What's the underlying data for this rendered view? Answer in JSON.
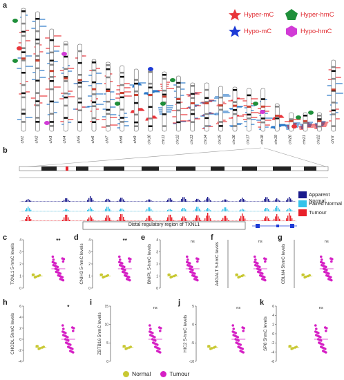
{
  "panels": {
    "a": "a",
    "b": "b",
    "c": "c",
    "d": "d",
    "e": "e",
    "f": "f",
    "g": "g",
    "h": "h",
    "i": "i",
    "j": "j",
    "k": "k"
  },
  "legend_a": {
    "hyper_mc": "Hyper-mC",
    "hyper_hmc": "Hyper-hmC",
    "hypo_mc": "Hypo-mC",
    "hypo_hmc": "Hypo-hmC",
    "colors": {
      "hyper_mc": "#e8353a",
      "hyper_hmc": "#1f8f3a",
      "hypo_mc": "#1e3bd6",
      "hypo_hmc": "#d13bd6"
    }
  },
  "chromosomes": [
    "chr1",
    "chr2",
    "chr3",
    "chr4",
    "chr5",
    "chr6",
    "chr7",
    "chr8",
    "chr9",
    "chr10",
    "chr11",
    "chr12",
    "chr13",
    "chr14",
    "chr15",
    "chr16",
    "chr17",
    "chr18",
    "chr19",
    "chr20",
    "chr21",
    "chr22",
    "chrX"
  ],
  "panel_b": {
    "legend": {
      "apparent_normal": "Apparent Normal",
      "paired_normal": "Paired Normal",
      "tumour": "Tumour"
    },
    "legend_colors": {
      "apparent_normal": "#1a1a8c",
      "paired_normal": "#35c3ea",
      "tumour": "#e8202a"
    },
    "region_label": "Distal regulatory region of TXNL1"
  },
  "scatter": {
    "legend": {
      "normal": "Normal",
      "tumour": "Tumour"
    },
    "colors": {
      "normal": "#c8c832",
      "tumour": "#d51fc4"
    },
    "plots": [
      {
        "id": "c",
        "ylabel": "TXNL1 5-hmC levels",
        "sig": "**",
        "ylim": [
          0,
          4
        ],
        "ticks": [
          "4",
          "3",
          "2",
          "1",
          "0"
        ]
      },
      {
        "id": "d",
        "ylabel": "CNIH3 5-hmC levels",
        "sig": "**",
        "ylim": [
          0,
          4
        ],
        "ticks": [
          "4",
          "3",
          "2",
          "1",
          "0"
        ]
      },
      {
        "id": "e",
        "ylabel": "BNIPL 5-hmC levels",
        "sig": "ns",
        "ylim": [
          0,
          4
        ],
        "ticks": [
          "4",
          "3",
          "2",
          "1",
          "0"
        ]
      },
      {
        "id": "f",
        "ylabel": "A4GALT 5-hmC levels",
        "sig": "ns",
        "ylim": [
          0,
          4
        ],
        "ticks": []
      },
      {
        "id": "g",
        "ylabel": "CBLN4 5hmC levels",
        "sig": "ns",
        "ylim": [
          0,
          4
        ],
        "ticks": []
      },
      {
        "id": "h",
        "ylabel": "CHODL 5hmC levels",
        "sig": "*",
        "ylim": [
          -4,
          6
        ],
        "ticks": [
          "6",
          "4",
          "2",
          "0",
          "-2",
          "-4"
        ]
      },
      {
        "id": "i",
        "ylabel": "ZBTB16 5hmC levels",
        "sig": "ns",
        "ylim": [
          0,
          15
        ],
        "ticks": [
          "15",
          "10",
          "5",
          "0"
        ]
      },
      {
        "id": "j",
        "ylabel": "HIC2 5-hmC levels",
        "sig": "ns",
        "ylim": [
          -10,
          5
        ],
        "ticks": [
          "5",
          "0",
          "-5",
          "-10"
        ]
      },
      {
        "id": "k",
        "ylabel": "SP8 5hmC levels",
        "sig": "ns",
        "ylim": [
          -6,
          6
        ],
        "ticks": [
          "6",
          "4",
          "2",
          "0",
          "-2",
          "-4",
          "-6"
        ]
      }
    ]
  }
}
